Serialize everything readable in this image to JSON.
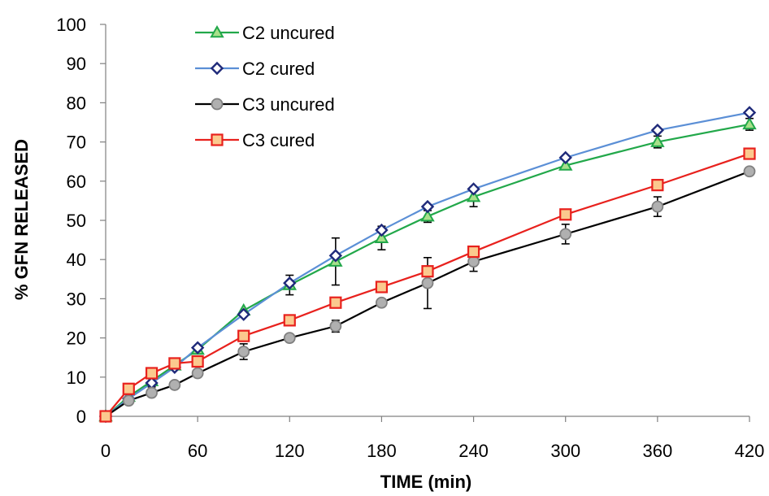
{
  "chart_data": {
    "type": "line",
    "title": "",
    "xlabel": "TIME (min)",
    "ylabel": "% GFN RELEASED",
    "xlim": [
      0,
      420
    ],
    "ylim": [
      0,
      100
    ],
    "xticks": [
      0,
      60,
      120,
      180,
      240,
      300,
      360,
      420
    ],
    "yticks": [
      0,
      10,
      20,
      30,
      40,
      50,
      60,
      70,
      80,
      90,
      100
    ],
    "grid": false,
    "legend_position": "top-left",
    "series": [
      {
        "name": "C2 uncured",
        "color": "#22a84a",
        "marker": "triangle",
        "x": [
          0,
          15,
          30,
          45,
          60,
          90,
          120,
          150,
          180,
          210,
          240,
          300,
          360,
          420
        ],
        "y": [
          0,
          5,
          9,
          13,
          17,
          27,
          33.5,
          39.5,
          45.5,
          51,
          56,
          64,
          70,
          74.5
        ],
        "err": [
          0,
          0,
          1.5,
          0,
          0,
          0,
          2.5,
          6,
          3,
          1.5,
          2.5,
          0,
          1.5,
          1.5
        ]
      },
      {
        "name": "C2 cured",
        "color": "#5b8fd6",
        "marker": "diamond",
        "x": [
          0,
          15,
          30,
          45,
          60,
          90,
          120,
          150,
          180,
          210,
          240,
          300,
          360,
          420
        ],
        "y": [
          0,
          4.5,
          8.5,
          12.5,
          17.5,
          26,
          34,
          41,
          47.5,
          53.5,
          58,
          66,
          73,
          77.5
        ],
        "err": [
          0,
          0,
          0,
          0,
          0,
          0,
          0,
          0,
          0,
          0,
          0,
          0,
          0,
          0
        ]
      },
      {
        "name": "C3 uncured",
        "color": "#000000",
        "marker": "circle",
        "x": [
          0,
          15,
          30,
          45,
          60,
          90,
          120,
          150,
          180,
          210,
          240,
          300,
          360,
          420
        ],
        "y": [
          0,
          4,
          6,
          8,
          11,
          16.5,
          20,
          23,
          29,
          34,
          39.5,
          46.5,
          53.5,
          62.5
        ],
        "err": [
          0,
          0,
          0,
          0,
          0,
          2,
          0,
          1.5,
          0,
          6.5,
          2.5,
          2.5,
          2.5,
          0
        ]
      },
      {
        "name": "C3 cured",
        "color": "#e8211d",
        "marker": "square",
        "x": [
          0,
          15,
          30,
          45,
          60,
          90,
          120,
          150,
          180,
          210,
          240,
          300,
          360,
          420
        ],
        "y": [
          0,
          7,
          11,
          13.5,
          14,
          20.5,
          24.5,
          29,
          33,
          37,
          42,
          51.5,
          59,
          67
        ],
        "err": [
          0,
          0,
          0,
          0,
          0,
          0,
          0,
          0,
          0,
          0,
          0,
          0,
          0,
          0
        ]
      }
    ]
  }
}
